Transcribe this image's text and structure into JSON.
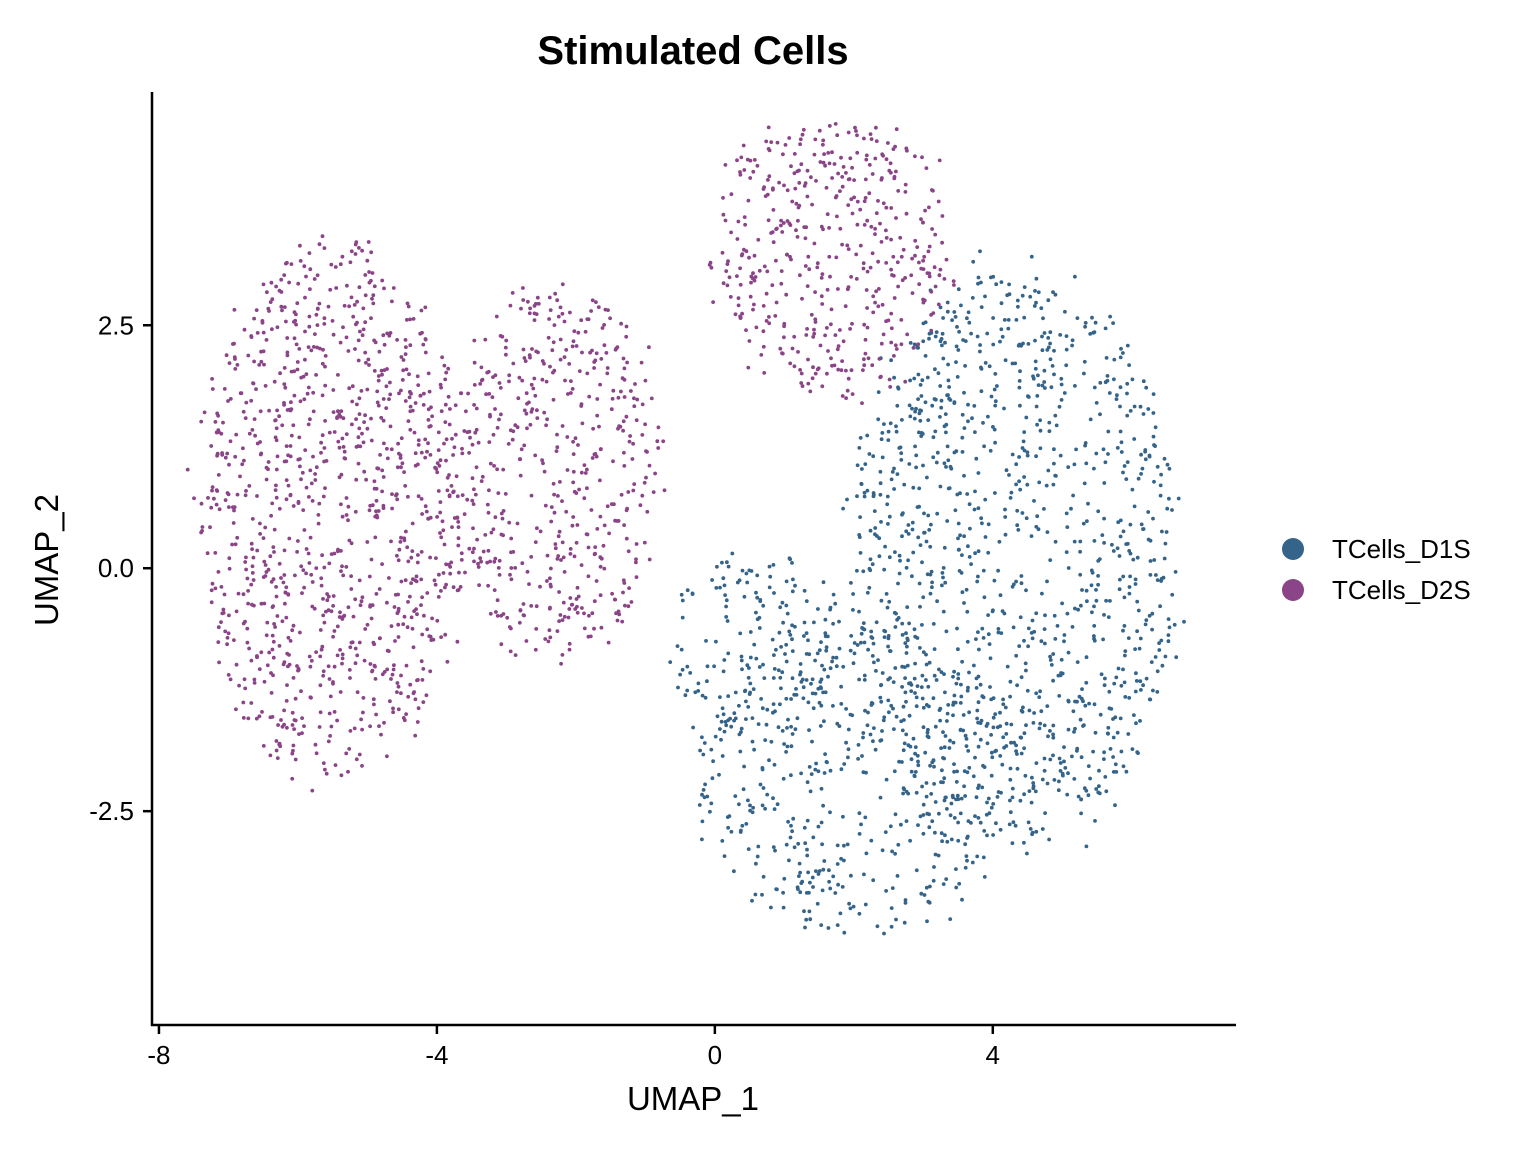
{
  "chart_data": {
    "type": "scatter",
    "title": "Stimulated Cells",
    "xlabel": "UMAP_1",
    "ylabel": "UMAP_2",
    "xlim": [
      -8.1,
      7.5
    ],
    "ylim": [
      -4.7,
      4.9
    ],
    "xticks": [
      -8,
      -4,
      0,
      4
    ],
    "xtick_labels": [
      "-8",
      "-4",
      "0",
      "4"
    ],
    "yticks": [
      -2.5,
      0.0,
      2.5
    ],
    "ytick_labels": [
      "-2.5",
      "0.0",
      "2.5"
    ],
    "legend_position": "right",
    "grid": false,
    "series": [
      {
        "name": "TCells_D1S",
        "color": "#35648a",
        "approx_point_count": 7000,
        "cluster_regions": [
          {
            "center": [
              4.3,
              0.1
            ],
            "spread": [
              2.4,
              3.0
            ],
            "weight": 0.62
          },
          {
            "center": [
              2.0,
              -2.2
            ],
            "spread": [
              2.3,
              1.6
            ],
            "weight": 0.28
          },
          {
            "center": [
              0.6,
              -0.8
            ],
            "spread": [
              1.3,
              1.0
            ],
            "weight": 0.1
          }
        ]
      },
      {
        "name": "TCells_D2S",
        "color": "#8a4487",
        "approx_point_count": 8000,
        "cluster_regions": [
          {
            "center": [
              -5.5,
              0.6
            ],
            "spread": [
              1.9,
              2.8
            ],
            "weight": 0.52
          },
          {
            "center": [
              -2.3,
              1.0
            ],
            "spread": [
              1.6,
              1.9
            ],
            "weight": 0.24
          },
          {
            "center": [
              1.7,
              3.3
            ],
            "spread": [
              1.7,
              1.6
            ],
            "weight": 0.24
          }
        ]
      }
    ]
  }
}
